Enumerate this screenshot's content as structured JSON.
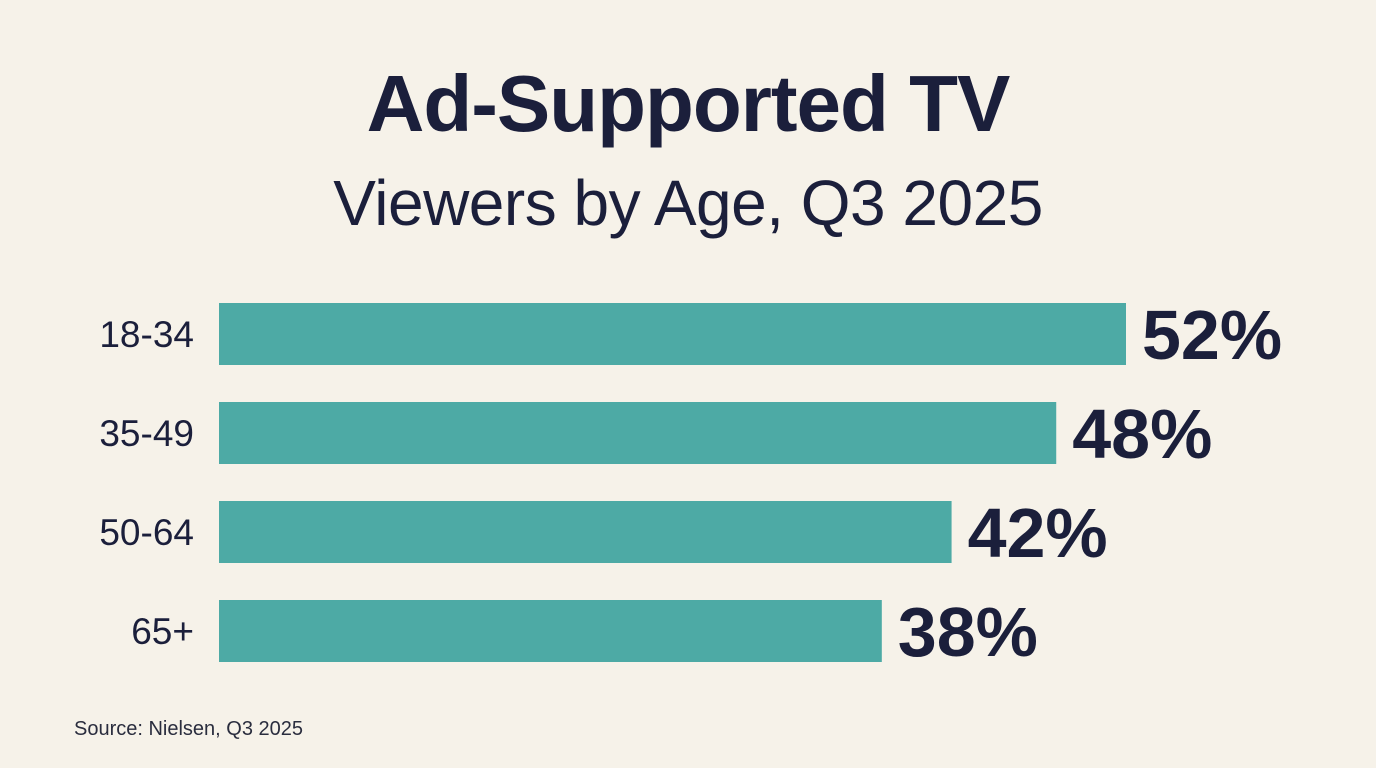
{
  "chart_data": {
    "type": "bar",
    "orientation": "horizontal",
    "title": "Ad-Supported TV",
    "subtitle": "Viewers by Age, Q3 2025",
    "categories": [
      "18-34",
      "35-49",
      "50-64",
      "65+"
    ],
    "values": [
      52,
      48,
      42,
      38
    ],
    "data_labels": [
      "52%",
      "48%",
      "42%",
      "38%"
    ],
    "unit": "%",
    "xlim": [
      0,
      52
    ],
    "grid": false,
    "legend": "none",
    "bar_color": "#4daaa5",
    "text_color": "#1b1f3b",
    "background_color": "#f6f2e9"
  },
  "source": "Source: Nielsen, Q3 2025"
}
